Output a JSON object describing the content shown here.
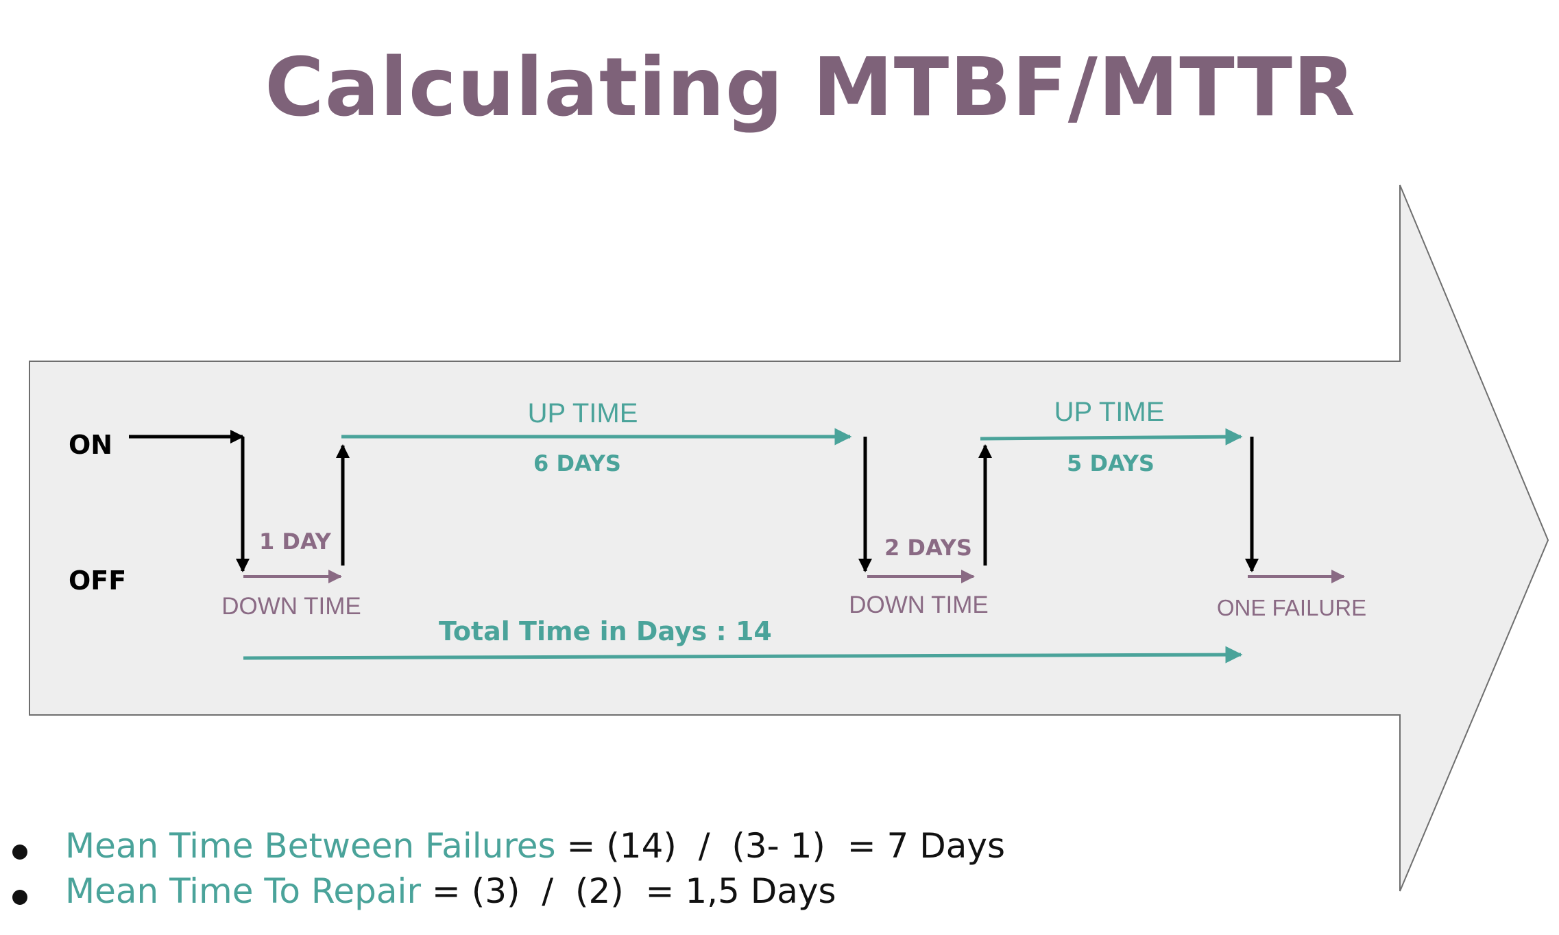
{
  "title": "Calculating MTBF/MTTR",
  "colors": {
    "title": "#7e6279",
    "uptime": "#4aa39a",
    "downtime": "#8a6a84",
    "arrow_fill": "#eeeeee",
    "transition": "#000000"
  },
  "states": {
    "on": "ON",
    "off": "OFF"
  },
  "segments": [
    {
      "label": "DOWN TIME",
      "duration": "1 DAY",
      "state": "off"
    },
    {
      "label": "UP TIME",
      "duration": "6 DAYS",
      "state": "on"
    },
    {
      "label": "DOWN TIME",
      "duration": "2 DAYS",
      "state": "off"
    },
    {
      "label": "UP TIME",
      "duration": "5 DAYS",
      "state": "on"
    },
    {
      "label": "ONE FAILURE",
      "duration": "",
      "state": "off"
    }
  ],
  "total": "Total Time in Days : 14",
  "formulas": [
    {
      "term": "Mean Time Between Failures",
      "expression": "= (14)  /  (3- 1)  = 7 Days"
    },
    {
      "term": "Mean Time To Repair",
      "expression": "= (3)  /  (2)  = 1,5 Days"
    }
  ]
}
